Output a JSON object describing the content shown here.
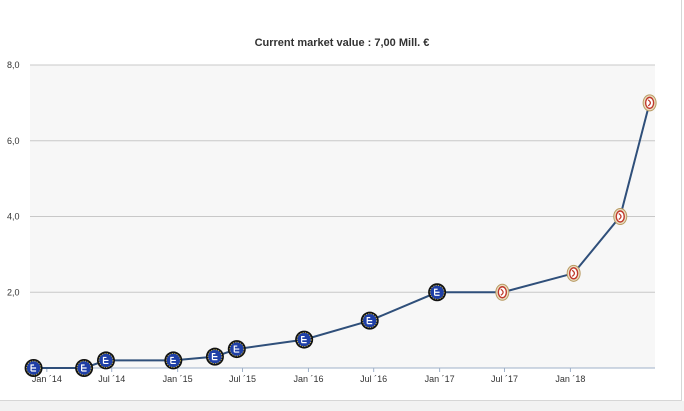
{
  "chart_data": {
    "type": "line",
    "title": "Current market value : 7,00 Mill. €",
    "ylim": [
      0,
      8
    ],
    "y_ticks": [
      "2,0",
      "4,0",
      "6,0",
      "8,0"
    ],
    "y_tick_values": [
      2,
      4,
      6,
      8
    ],
    "x_ticks": [
      "Jan ´14",
      "Jul ´14",
      "Jan ´15",
      "Jul ´15",
      "Jan ´16",
      "Jul ´16",
      "Jan ´17",
      "Jul ´17",
      "Jan ´18"
    ],
    "x_tick_dates": [
      "2014-01-01",
      "2014-07-01",
      "2015-01-01",
      "2015-07-01",
      "2016-01-01",
      "2016-07-01",
      "2017-01-01",
      "2017-07-01",
      "2018-01-01"
    ],
    "xlim": [
      "2013-11-15",
      "2018-08-25"
    ],
    "grid": true,
    "line_color": "#2f4f7a",
    "plot_background": "#f7f7f7",
    "series": [
      {
        "values": [
          {
            "date": "2013-11-25",
            "value": 0.0,
            "club": "blue-crest"
          },
          {
            "date": "2014-04-15",
            "value": 0.0,
            "club": "blue-crest"
          },
          {
            "date": "2014-06-15",
            "value": 0.2,
            "club": "blue-crest"
          },
          {
            "date": "2014-12-20",
            "value": 0.2,
            "club": "blue-crest"
          },
          {
            "date": "2015-04-15",
            "value": 0.3,
            "club": "blue-crest"
          },
          {
            "date": "2015-06-15",
            "value": 0.5,
            "club": "blue-crest"
          },
          {
            "date": "2015-12-20",
            "value": 0.75,
            "club": "blue-crest"
          },
          {
            "date": "2016-06-20",
            "value": 1.25,
            "club": "blue-crest"
          },
          {
            "date": "2016-12-25",
            "value": 2.0,
            "club": "blue-crest"
          },
          {
            "date": "2017-06-25",
            "value": 2.0,
            "club": "red-crest"
          },
          {
            "date": "2018-01-10",
            "value": 2.5,
            "club": "red-crest"
          },
          {
            "date": "2018-05-20",
            "value": 4.0,
            "club": "red-crest"
          },
          {
            "date": "2018-08-10",
            "value": 7.0,
            "club": "red-crest"
          }
        ]
      }
    ]
  }
}
